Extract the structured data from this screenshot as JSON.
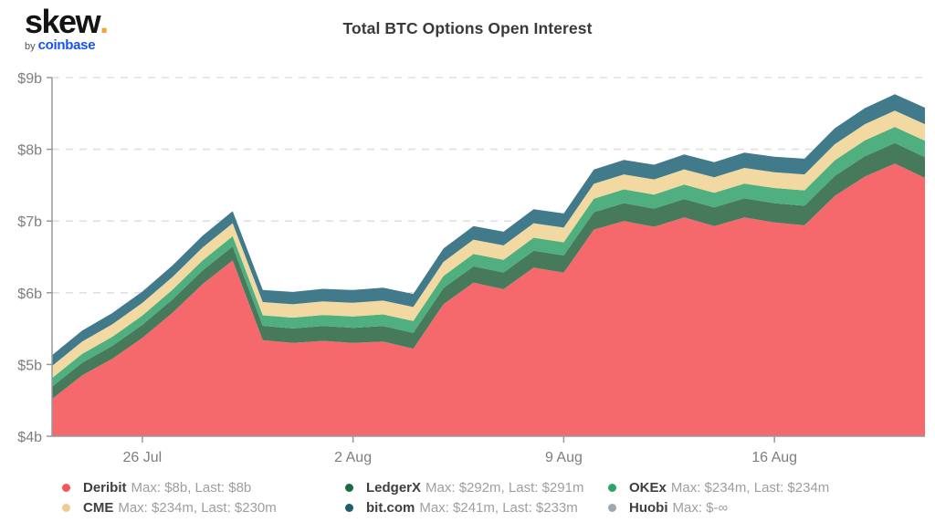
{
  "header": {
    "logo": {
      "brand": "skew",
      "dot": ".",
      "byline_prefix": "by",
      "byline_brand": "coinbase",
      "brand_color": "#141414",
      "dot_color": "#F5A33B",
      "coinbase_color": "#1652F0"
    },
    "title": "Total BTC Options Open Interest"
  },
  "legend": {
    "columns": [
      [
        {
          "name": "Deribit",
          "detail": "Max: $8b, Last: $8b",
          "color": "#F4565C"
        },
        {
          "name": "CME",
          "detail": "Max: $234m, Last: $230m",
          "color": "#EFCD92"
        }
      ],
      [
        {
          "name": "LedgerX",
          "detail": "Max: $292m, Last: $291m",
          "color": "#1D6A42"
        },
        {
          "name": "bit.com",
          "detail": "Max: $241m, Last: $233m",
          "color": "#1F5D70"
        }
      ],
      [
        {
          "name": "OKEx",
          "detail": "Max: $234m, Last: $234m",
          "color": "#2AA568"
        },
        {
          "name": "Huobi",
          "detail": "Max: $-∞",
          "color": "#9DA8B1"
        }
      ]
    ]
  },
  "chart_data": {
    "type": "area",
    "stacked": true,
    "title": "Total BTC Options Open Interest",
    "unit": "$ billions",
    "grid": "horizontal-dashed",
    "legend_position": "bottom",
    "ylim": [
      4,
      9
    ],
    "y_ticks": [
      {
        "value": 4,
        "label": "$4b"
      },
      {
        "value": 5,
        "label": "$5b"
      },
      {
        "value": 6,
        "label": "$6b"
      },
      {
        "value": 7,
        "label": "$7b"
      },
      {
        "value": 8,
        "label": "$8b"
      },
      {
        "value": 9,
        "label": "$9b"
      }
    ],
    "x": [
      "23 Jul",
      "24 Jul",
      "25 Jul",
      "26 Jul",
      "27 Jul",
      "28 Jul",
      "29 Jul",
      "30 Jul",
      "31 Jul",
      "1 Aug",
      "2 Aug",
      "3 Aug",
      "4 Aug",
      "5 Aug",
      "6 Aug",
      "7 Aug",
      "8 Aug",
      "9 Aug",
      "10 Aug",
      "11 Aug",
      "12 Aug",
      "13 Aug",
      "14 Aug",
      "15 Aug",
      "16 Aug",
      "17 Aug",
      "18 Aug",
      "19 Aug",
      "20 Aug",
      "21 Aug"
    ],
    "x_ticks": [
      {
        "index": 3,
        "label": "26 Jul"
      },
      {
        "index": 10,
        "label": "2 Aug"
      },
      {
        "index": 17,
        "label": "9 Aug"
      },
      {
        "index": 24,
        "label": "16 Aug"
      }
    ],
    "series": [
      {
        "name": "Deribit",
        "color": "#F5696D",
        "values": [
          4.52,
          4.85,
          5.08,
          5.37,
          5.72,
          6.12,
          6.45,
          5.34,
          5.3,
          5.33,
          5.3,
          5.32,
          5.22,
          5.84,
          6.14,
          6.05,
          6.35,
          6.28,
          6.88,
          7.0,
          6.92,
          7.05,
          6.93,
          7.05,
          6.98,
          6.94,
          7.35,
          7.62,
          7.8,
          7.6
        ]
      },
      {
        "name": "LedgerX",
        "color": "#47795B",
        "values": [
          0.17,
          0.174,
          0.178,
          0.182,
          0.187,
          0.191,
          0.195,
          0.199,
          0.203,
          0.207,
          0.211,
          0.216,
          0.22,
          0.224,
          0.228,
          0.232,
          0.236,
          0.24,
          0.244,
          0.249,
          0.253,
          0.257,
          0.261,
          0.265,
          0.269,
          0.273,
          0.277,
          0.282,
          0.286,
          0.29
        ]
      },
      {
        "name": "OKEx",
        "color": "#4FAF7F",
        "values": [
          0.12,
          0.124,
          0.128,
          0.131,
          0.135,
          0.139,
          0.143,
          0.147,
          0.15,
          0.154,
          0.158,
          0.162,
          0.166,
          0.169,
          0.173,
          0.177,
          0.181,
          0.184,
          0.188,
          0.192,
          0.196,
          0.2,
          0.203,
          0.207,
          0.211,
          0.215,
          0.219,
          0.222,
          0.226,
          0.23
        ]
      },
      {
        "name": "CME",
        "color": "#F2D9A1",
        "values": [
          0.17,
          0.172,
          0.174,
          0.176,
          0.178,
          0.18,
          0.182,
          0.184,
          0.187,
          0.189,
          0.191,
          0.193,
          0.195,
          0.197,
          0.199,
          0.201,
          0.203,
          0.205,
          0.207,
          0.209,
          0.211,
          0.213,
          0.216,
          0.218,
          0.22,
          0.222,
          0.224,
          0.226,
          0.228,
          0.23
        ]
      },
      {
        "name": "bit.com",
        "color": "#417A8B",
        "values": [
          0.15,
          0.153,
          0.156,
          0.158,
          0.161,
          0.164,
          0.167,
          0.169,
          0.172,
          0.175,
          0.178,
          0.18,
          0.183,
          0.186,
          0.189,
          0.191,
          0.194,
          0.197,
          0.2,
          0.202,
          0.205,
          0.208,
          0.211,
          0.213,
          0.216,
          0.219,
          0.222,
          0.224,
          0.227,
          0.23
        ]
      }
    ]
  }
}
